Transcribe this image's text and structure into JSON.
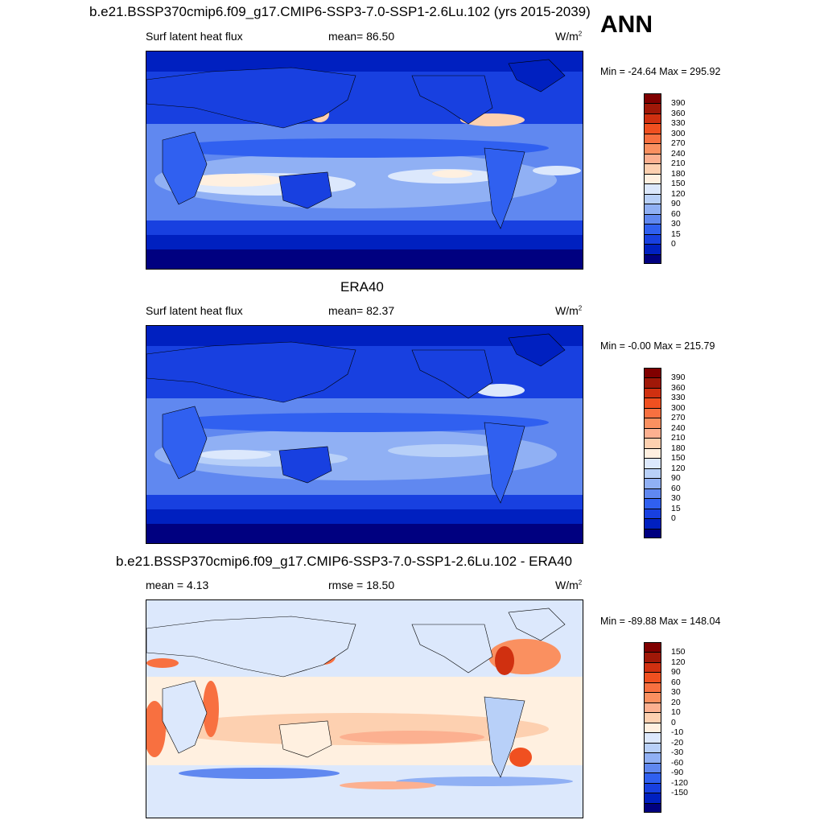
{
  "annotation": "ANN",
  "colors": {
    "abs_scale": [
      "#000080",
      "#0020c0",
      "#1840e0",
      "#3060f0",
      "#6088f0",
      "#90b0f4",
      "#b8d0f8",
      "#dce8fc",
      "#fff0e0",
      "#fdd0b0",
      "#fcb090",
      "#fa9060",
      "#f87040",
      "#f05020",
      "#d03010",
      "#a01808",
      "#800000"
    ],
    "diff_scale": [
      "#000080",
      "#0020c0",
      "#1840e0",
      "#3060f0",
      "#6088f0",
      "#90b0f4",
      "#b8d0f8",
      "#dce8fc",
      "#fff0e0",
      "#fdd0b0",
      "#fcb090",
      "#fa9060",
      "#f87040",
      "#f05020",
      "#d03010",
      "#a01808",
      "#800000"
    ]
  },
  "panels": [
    {
      "title": "b.e21.BSSP370cmip6.f09_g17.CMIP6-SSP3-7.0-SSP1-2.6Lu.102 (yrs 2015-2039)",
      "left_label": "Surf latent heat flux",
      "center_label": "mean=  86.50",
      "units": "W/m",
      "units_sup": "2",
      "minmax": "Min = -24.64 Max = 295.92",
      "colorbar_ticks": [
        "390",
        "360",
        "330",
        "300",
        "270",
        "240",
        "210",
        "180",
        "150",
        "120",
        "90",
        "60",
        "30",
        "15",
        "0"
      ]
    },
    {
      "title": "ERA40",
      "left_label": "Surf latent heat flux",
      "center_label": "mean=  82.37",
      "units": "W/m",
      "units_sup": "2",
      "minmax": "Min =  -0.00 Max = 215.79",
      "colorbar_ticks": [
        "390",
        "360",
        "330",
        "300",
        "270",
        "240",
        "210",
        "180",
        "150",
        "120",
        "90",
        "60",
        "30",
        "15",
        "0"
      ]
    },
    {
      "title": "b.e21.BSSP370cmip6.f09_g17.CMIP6-SSP3-7.0-SSP1-2.6Lu.102 - ERA40",
      "left_label": "mean =   4.13",
      "center_label": "rmse =  18.50",
      "units": "W/m",
      "units_sup": "2",
      "minmax": "Min = -89.88 Max = 148.04",
      "colorbar_ticks": [
        "150",
        "120",
        "90",
        "60",
        "30",
        "20",
        "10",
        "0",
        "-10",
        "-20",
        "-30",
        "-60",
        "-90",
        "-120",
        "-150"
      ]
    }
  ],
  "chart_data": [
    {
      "type": "heatmap",
      "title": "b.e21.BSSP370cmip6.f09_g17.CMIP6-SSP3-7.0-SSP1-2.6Lu.102 (yrs 2015-2039)",
      "variable": "Surf latent heat flux",
      "units": "W/m2",
      "mean": 86.5,
      "min": -24.64,
      "max": 295.92,
      "levels": [
        0,
        15,
        30,
        60,
        90,
        120,
        150,
        180,
        210,
        240,
        270,
        300,
        330,
        360,
        390
      ]
    },
    {
      "type": "heatmap",
      "title": "ERA40",
      "variable": "Surf latent heat flux",
      "units": "W/m2",
      "mean": 82.37,
      "min": -0.0,
      "max": 215.79,
      "levels": [
        0,
        15,
        30,
        60,
        90,
        120,
        150,
        180,
        210,
        240,
        270,
        300,
        330,
        360,
        390
      ]
    },
    {
      "type": "heatmap",
      "title": "b.e21.BSSP370cmip6.f09_g17.CMIP6-SSP3-7.0-SSP1-2.6Lu.102 - ERA40",
      "units": "W/m2",
      "mean": 4.13,
      "rmse": 18.5,
      "min": -89.88,
      "max": 148.04,
      "levels": [
        -150,
        -120,
        -90,
        -60,
        -30,
        -20,
        -10,
        0,
        10,
        20,
        30,
        60,
        90,
        120,
        150
      ]
    }
  ]
}
